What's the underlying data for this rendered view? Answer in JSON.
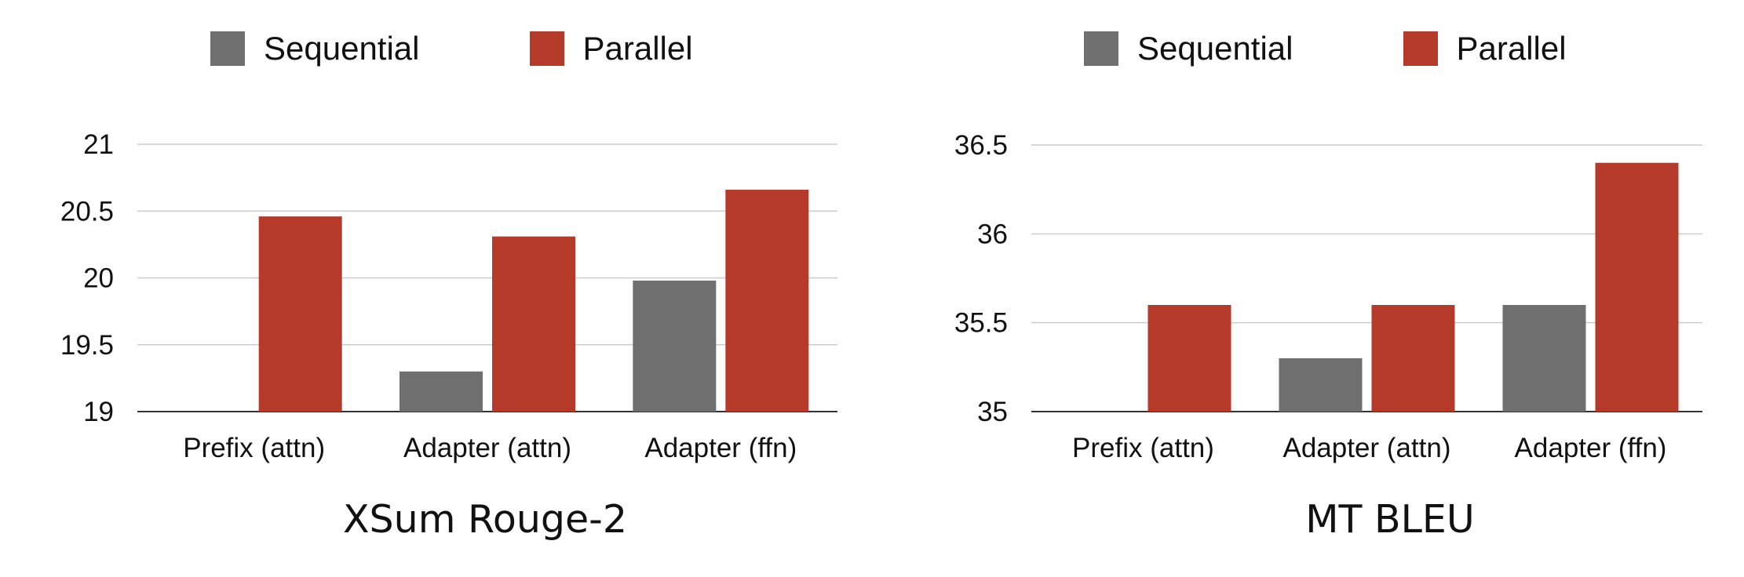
{
  "colors": {
    "sequential": "#6f6f6f",
    "parallel": "#b53a2a",
    "grid": "#cccccc",
    "axis": "#333333"
  },
  "legend": {
    "sequential": "Sequential",
    "parallel": "Parallel"
  },
  "chart_data": [
    {
      "type": "bar",
      "title": "XSum Rouge-2",
      "categories": [
        "Prefix (attn)",
        "Adapter (attn)",
        "Adapter (ffn)"
      ],
      "series": [
        {
          "name": "Sequential",
          "values": [
            null,
            19.3,
            19.98
          ]
        },
        {
          "name": "Parallel",
          "values": [
            20.46,
            20.31,
            20.66
          ]
        }
      ],
      "yticks": [
        "19",
        "19.5",
        "20",
        "20.5",
        "21"
      ],
      "ylim": [
        19,
        21
      ],
      "grid": true,
      "legend_position": "top"
    },
    {
      "type": "bar",
      "title": "MT BLEU",
      "categories": [
        "Prefix (attn)",
        "Adapter (attn)",
        "Adapter (ffn)"
      ],
      "series": [
        {
          "name": "Sequential",
          "values": [
            null,
            35.3,
            35.6
          ]
        },
        {
          "name": "Parallel",
          "values": [
            35.6,
            35.6,
            36.4
          ]
        }
      ],
      "yticks": [
        "35",
        "35.5",
        "36",
        "36.5"
      ],
      "ylim": [
        35,
        36.5
      ],
      "grid": true,
      "legend_position": "top"
    }
  ]
}
